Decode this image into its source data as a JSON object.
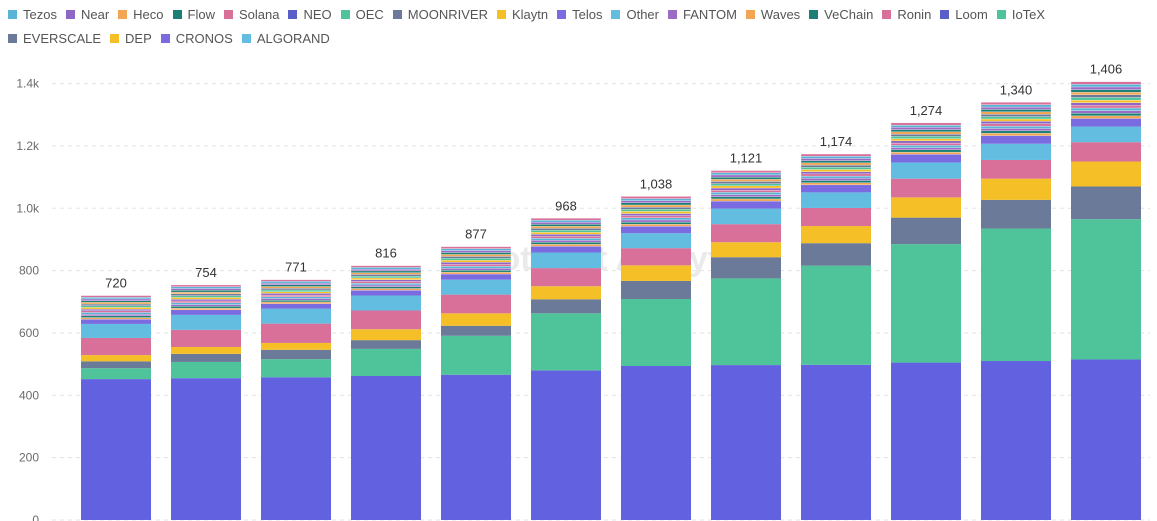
{
  "chart_data": {
    "type": "bar",
    "stacked": true,
    "title": "",
    "xlabel": "",
    "ylabel": "",
    "ylim": [
      0,
      1450
    ],
    "y_ticks": [
      0,
      200,
      400,
      600,
      800,
      1000,
      1200,
      1400
    ],
    "y_tick_labels": [
      "0",
      "200",
      "400",
      "600",
      "800",
      "1.0k",
      "1.2k",
      "1.4k"
    ],
    "grid": true,
    "legend_position": "top",
    "watermark": "Footprint Analytics",
    "totals": [
      720,
      754,
      771,
      816,
      877,
      968,
      1038,
      1121,
      1174,
      1274,
      1340,
      1406
    ],
    "total_labels": [
      "720",
      "754",
      "771",
      "816",
      "877",
      "968",
      "1,038",
      "1,121",
      "1,174",
      "1,274",
      "1,340",
      "1,406"
    ],
    "legend": [
      {
        "name": "Tezos",
        "color": "#5ab4d6"
      },
      {
        "name": "Near",
        "color": "#8e67c6"
      },
      {
        "name": "Heco",
        "color": "#f2a553"
      },
      {
        "name": "Flow",
        "color": "#1a7f74"
      },
      {
        "name": "Solana",
        "color": "#d9709a"
      },
      {
        "name": "NEO",
        "color": "#5a5ec9"
      },
      {
        "name": "OEC",
        "color": "#4fc49a"
      },
      {
        "name": "MOONRIVER",
        "color": "#6b7a99"
      },
      {
        "name": "Klaytn",
        "color": "#f5c027"
      },
      {
        "name": "Telos",
        "color": "#7b6be0"
      },
      {
        "name": "Other",
        "color": "#63bde0"
      },
      {
        "name": "FANTOM",
        "color": "#9a6cc4"
      },
      {
        "name": "Waves",
        "color": "#f2a553"
      },
      {
        "name": "VeChain",
        "color": "#1a7f74"
      },
      {
        "name": "Ronin",
        "color": "#d9709a"
      },
      {
        "name": "Loom",
        "color": "#5a5ec9"
      },
      {
        "name": "IoTeX",
        "color": "#4fc49a"
      },
      {
        "name": "EVERSCALE",
        "color": "#6b7a99"
      },
      {
        "name": "DEP",
        "color": "#f5c027"
      },
      {
        "name": "CRONOS",
        "color": "#7b6be0"
      },
      {
        "name": "ALGORAND",
        "color": "#63bde0"
      }
    ],
    "series": [
      {
        "name": "Loom",
        "color": "#6262e0",
        "values": [
          452,
          455,
          458,
          462,
          466,
          480,
          494,
          497,
          498,
          505,
          510,
          515
        ]
      },
      {
        "name": "IoTeX",
        "color": "#4fc49a",
        "values": [
          35,
          52,
          58,
          87,
          125,
          183,
          215,
          278,
          318,
          380,
          425,
          450
        ]
      },
      {
        "name": "EVERSCALE",
        "color": "#6b7a99",
        "values": [
          22,
          26,
          30,
          28,
          32,
          45,
          58,
          68,
          72,
          85,
          92,
          105
        ]
      },
      {
        "name": "DEP",
        "color": "#f5c027",
        "values": [
          20,
          22,
          22,
          35,
          40,
          42,
          50,
          48,
          55,
          65,
          68,
          80
        ]
      },
      {
        "name": "Ronin",
        "color": "#d9709a",
        "values": [
          55,
          55,
          62,
          60,
          60,
          58,
          55,
          58,
          58,
          60,
          60,
          62
        ]
      },
      {
        "name": "ALGORAND",
        "color": "#63bde0",
        "values": [
          45,
          48,
          48,
          48,
          48,
          50,
          48,
          50,
          50,
          52,
          52,
          50
        ]
      },
      {
        "name": "CRONOS",
        "color": "#7b6be0",
        "values": [
          15,
          16,
          16,
          17,
          18,
          20,
          22,
          24,
          24,
          26,
          26,
          26
        ]
      },
      {
        "name": "Other",
        "color": "#b388d6",
        "values": [
          76,
          80,
          77,
          79,
          88,
          90,
          96,
          98,
          99,
          101,
          107,
          118
        ]
      }
    ]
  }
}
